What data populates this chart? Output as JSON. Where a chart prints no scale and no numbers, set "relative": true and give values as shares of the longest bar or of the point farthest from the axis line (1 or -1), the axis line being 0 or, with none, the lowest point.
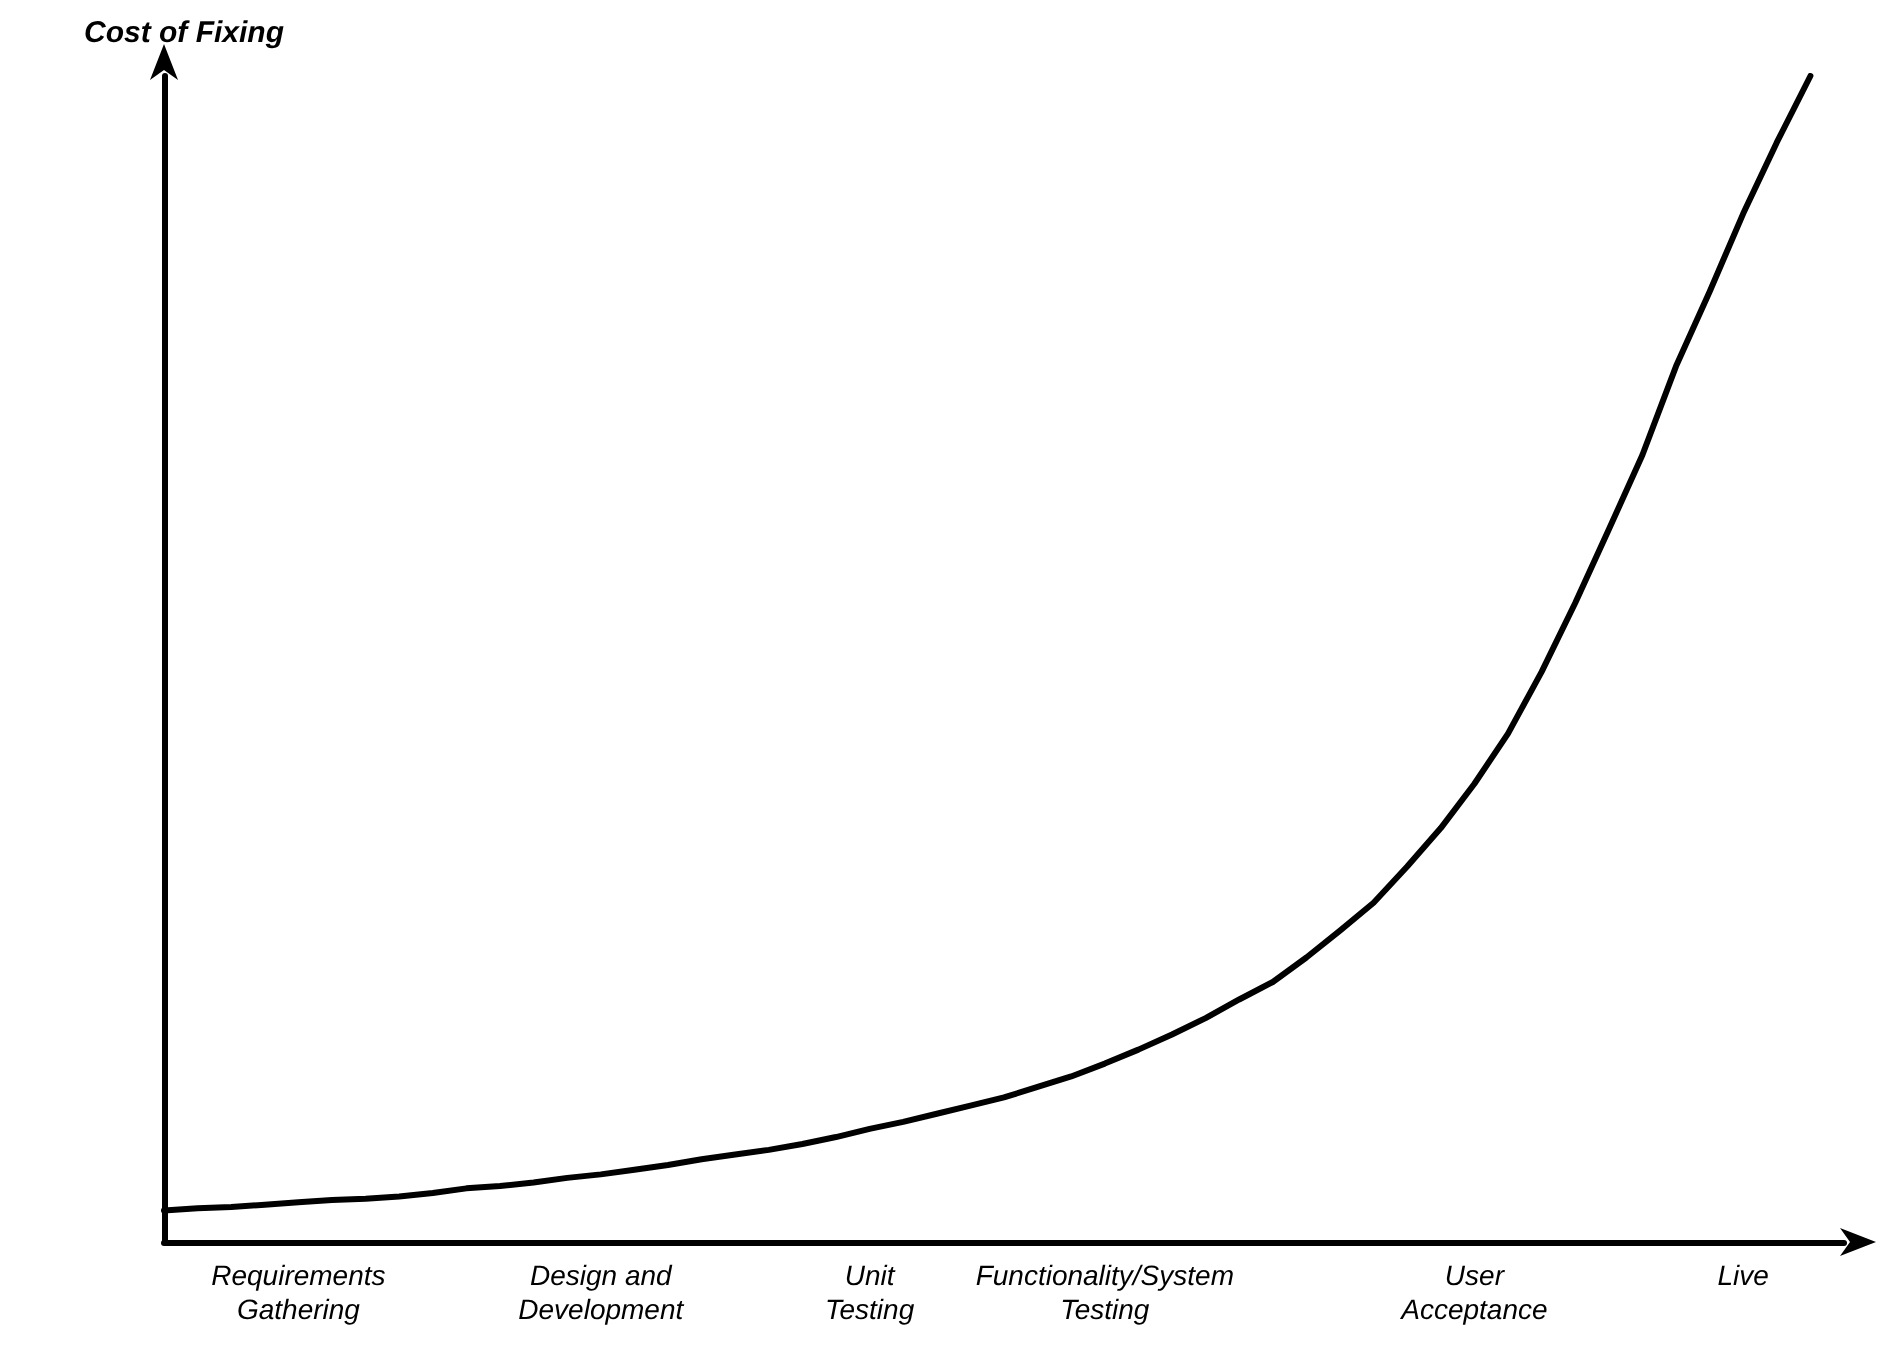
{
  "chart_data": {
    "type": "line",
    "ylabel": "Cost of Fixing",
    "relative": true,
    "color": "#000000",
    "marker": "none",
    "grid": false,
    "categories": [
      null,
      null,
      null,
      null,
      "Requirements\nGathering",
      null,
      null,
      null,
      null,
      null,
      null,
      null,
      null,
      "Design and\nDevelopment",
      null,
      null,
      null,
      null,
      null,
      null,
      null,
      "Unit\nTesting",
      null,
      null,
      null,
      null,
      null,
      null,
      "Functionality/System\nTesting",
      null,
      null,
      null,
      null,
      null,
      null,
      null,
      null,
      null,
      null,
      "User\nAcceptance",
      null,
      null,
      null,
      null,
      null,
      null,
      null,
      "Live",
      null,
      null,
      null
    ],
    "values": [
      0.027,
      0.029,
      0.03,
      0.032,
      0.034,
      0.036,
      0.037,
      0.039,
      0.042,
      0.046,
      0.048,
      0.051,
      0.055,
      0.058,
      0.062,
      0.066,
      0.071,
      0.075,
      0.079,
      0.084,
      0.09,
      0.097,
      0.103,
      0.11,
      0.117,
      0.124,
      0.133,
      0.142,
      0.153,
      0.165,
      0.178,
      0.192,
      0.208,
      0.223,
      0.244,
      0.267,
      0.291,
      0.322,
      0.355,
      0.393,
      0.436,
      0.489,
      0.548,
      0.611,
      0.675,
      0.751,
      0.815,
      0.882,
      0.943,
      1.0,
      null
    ]
  }
}
